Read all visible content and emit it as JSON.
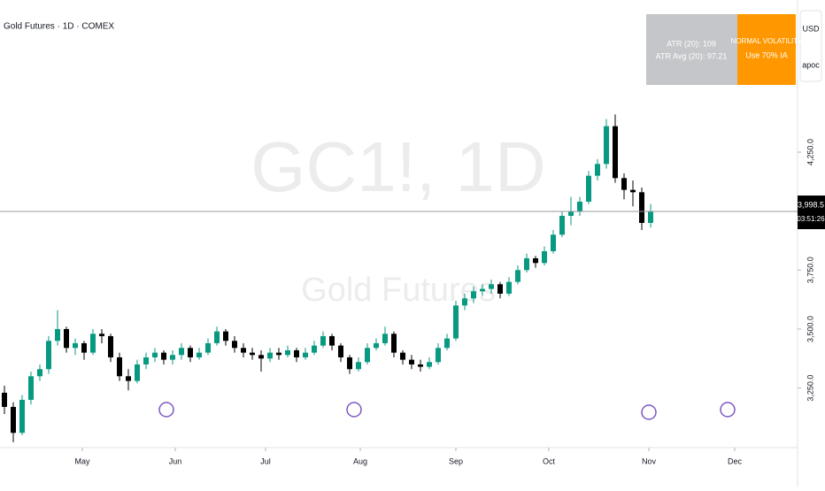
{
  "chart_data": {
    "type": "candlestick",
    "title": "Gold Futures · 1D · COMEX",
    "watermark": "GC1!, 1D",
    "watermark_subtitle": "Gold Futures",
    "currency": "USD",
    "axis_mode": "apoc",
    "indicator": {
      "atr": "ATR (20): 109",
      "atr_avg": "ATR Avg (20): 97.21",
      "state": "NORMAL VOLATILITY",
      "advice": "Use 70% IA",
      "state_color": "#ff9800",
      "box_color": "#c5c6c9"
    },
    "up_color": "#089981",
    "down_color": "#000000",
    "ohlc": [
      [
        3230,
        3260,
        3140,
        3170
      ],
      [
        3170,
        3190,
        3020,
        3060
      ],
      [
        3060,
        3220,
        3050,
        3200
      ],
      [
        3200,
        3320,
        3180,
        3300
      ],
      [
        3300,
        3350,
        3280,
        3330
      ],
      [
        3330,
        3470,
        3310,
        3450
      ],
      [
        3450,
        3580,
        3430,
        3500
      ],
      [
        3500,
        3510,
        3400,
        3420
      ],
      [
        3420,
        3460,
        3390,
        3440
      ],
      [
        3440,
        3450,
        3370,
        3400
      ],
      [
        3400,
        3500,
        3390,
        3480
      ],
      [
        3480,
        3500,
        3440,
        3470
      ],
      [
        3470,
        3480,
        3360,
        3380
      ],
      [
        3380,
        3400,
        3280,
        3300
      ],
      [
        3300,
        3330,
        3240,
        3280
      ],
      [
        3280,
        3370,
        3270,
        3350
      ],
      [
        3350,
        3400,
        3330,
        3380
      ],
      [
        3380,
        3420,
        3360,
        3400
      ],
      [
        3400,
        3410,
        3350,
        3370
      ],
      [
        3370,
        3410,
        3350,
        3390
      ],
      [
        3390,
        3440,
        3370,
        3420
      ],
      [
        3420,
        3430,
        3360,
        3380
      ],
      [
        3380,
        3420,
        3370,
        3400
      ],
      [
        3400,
        3460,
        3390,
        3440
      ],
      [
        3440,
        3510,
        3430,
        3490
      ],
      [
        3490,
        3500,
        3430,
        3450
      ],
      [
        3450,
        3470,
        3400,
        3420
      ],
      [
        3420,
        3440,
        3380,
        3400
      ],
      [
        3400,
        3420,
        3370,
        3390
      ],
      [
        3390,
        3410,
        3320,
        3375
      ],
      [
        3375,
        3420,
        3360,
        3400
      ],
      [
        3400,
        3420,
        3370,
        3390
      ],
      [
        3390,
        3430,
        3380,
        3410
      ],
      [
        3410,
        3420,
        3360,
        3380
      ],
      [
        3380,
        3420,
        3370,
        3400
      ],
      [
        3400,
        3450,
        3390,
        3430
      ],
      [
        3430,
        3490,
        3420,
        3470
      ],
      [
        3470,
        3480,
        3410,
        3430
      ],
      [
        3430,
        3440,
        3360,
        3380
      ],
      [
        3380,
        3390,
        3310,
        3330
      ],
      [
        3330,
        3380,
        3320,
        3360
      ],
      [
        3360,
        3440,
        3350,
        3420
      ],
      [
        3420,
        3460,
        3410,
        3440
      ],
      [
        3440,
        3510,
        3430,
        3480
      ],
      [
        3480,
        3490,
        3380,
        3400
      ],
      [
        3400,
        3410,
        3350,
        3370
      ],
      [
        3370,
        3390,
        3330,
        3350
      ],
      [
        3350,
        3370,
        3320,
        3340
      ],
      [
        3340,
        3380,
        3330,
        3360
      ],
      [
        3360,
        3440,
        3350,
        3420
      ],
      [
        3420,
        3480,
        3410,
        3460
      ],
      [
        3460,
        3620,
        3450,
        3600
      ],
      [
        3600,
        3650,
        3580,
        3630
      ],
      [
        3630,
        3680,
        3610,
        3660
      ],
      [
        3660,
        3690,
        3640,
        3670
      ],
      [
        3670,
        3710,
        3650,
        3690
      ],
      [
        3690,
        3700,
        3630,
        3650
      ],
      [
        3650,
        3720,
        3640,
        3700
      ],
      [
        3700,
        3770,
        3690,
        3750
      ],
      [
        3750,
        3820,
        3740,
        3800
      ],
      [
        3800,
        3810,
        3760,
        3780
      ],
      [
        3780,
        3850,
        3770,
        3830
      ],
      [
        3830,
        3920,
        3820,
        3900
      ],
      [
        3900,
        4000,
        3890,
        3980
      ],
      [
        3980,
        4060,
        3940,
        4000
      ],
      [
        4000,
        4060,
        3980,
        4040
      ],
      [
        4040,
        4170,
        4030,
        4150
      ],
      [
        4150,
        4220,
        4130,
        4200
      ],
      [
        4200,
        4390,
        4180,
        4360
      ],
      [
        4360,
        4410,
        4120,
        4140
      ],
      [
        4140,
        4160,
        4050,
        4090
      ],
      [
        4090,
        4130,
        4020,
        4080
      ],
      [
        4080,
        4100,
        3920,
        3950
      ],
      [
        3950,
        4030,
        3930,
        3998.5
      ]
    ],
    "xlim": [
      -0.5,
      89.5
    ],
    "xticks": [
      {
        "value": 8.8,
        "label": "May"
      },
      {
        "value": 19.3,
        "label": "Jun"
      },
      {
        "value": 29.5,
        "label": "Jul"
      },
      {
        "value": 40.2,
        "label": "Aug"
      },
      {
        "value": 51,
        "label": "Sep"
      },
      {
        "value": 61.5,
        "label": "Oct"
      },
      {
        "value": 72.8,
        "label": "Nov"
      },
      {
        "value": 82.5,
        "label": "Dec"
      }
    ],
    "ylim": [
      3001,
      4895
    ],
    "yticks": [
      {
        "value": 3250,
        "label": "3,250.0"
      },
      {
        "value": 3500,
        "label": "3,500.0"
      },
      {
        "value": 3750,
        "label": "3,750.0"
      },
      {
        "value": 4250,
        "label": "4,250.0"
      }
    ],
    "last_price": {
      "value": 3998.5,
      "label": "3,998.5"
    },
    "countdown": "03:51:26"
  }
}
